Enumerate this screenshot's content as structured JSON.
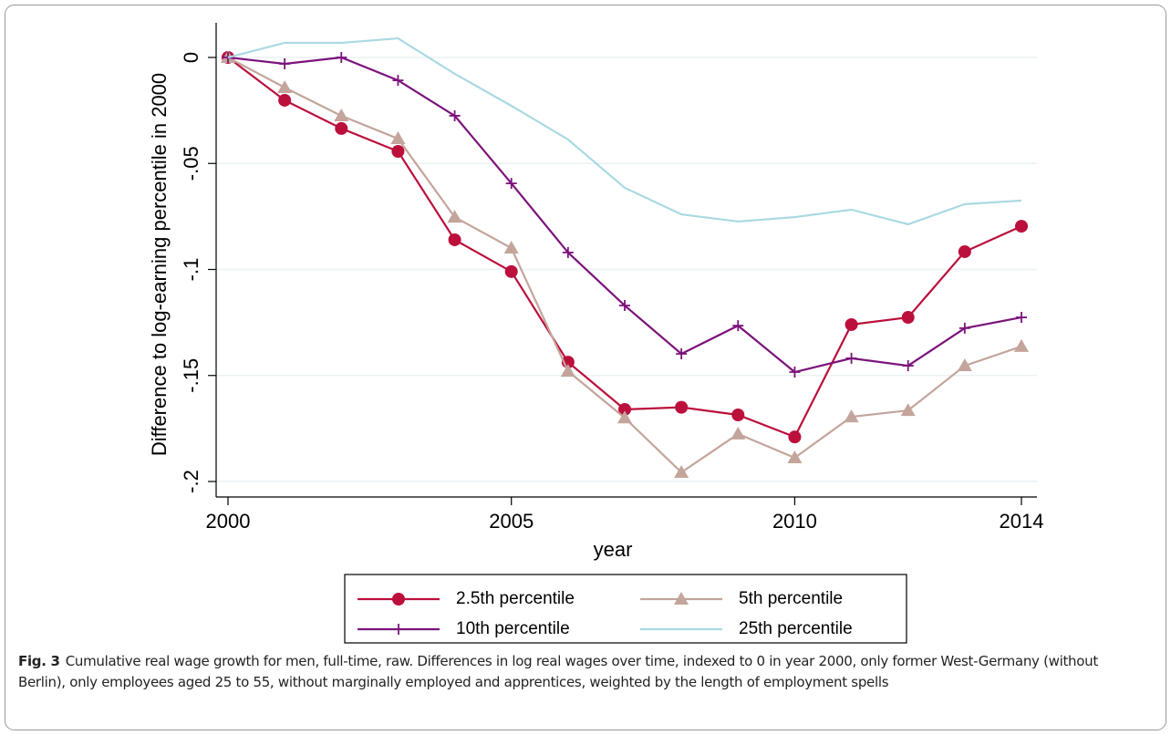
{
  "chart_data": {
    "type": "line",
    "x_label": "year",
    "y_label": "Difference to log-earning percentile in 2000",
    "x": [
      2000,
      2001,
      2002,
      2003,
      2004,
      2005,
      2006,
      2007,
      2008,
      2009,
      2010,
      2011,
      2012,
      2013,
      2014
    ],
    "xlim": [
      2000,
      2014
    ],
    "xticks": [
      2000,
      2005,
      2010,
      2014
    ],
    "ylim": [
      -0.2,
      0
    ],
    "yticks": [
      0,
      {
        "value": -0.05,
        "label": "-.05"
      },
      {
        "value": -0.1,
        "label": "-.1"
      },
      {
        "value": -0.15,
        "label": "-.15"
      },
      {
        "value": -0.2,
        "label": "-.2"
      }
    ],
    "grid": true,
    "series": [
      {
        "name": "2.5th percentile",
        "color": "#bb0f3c",
        "marker": "circle",
        "values": [
          0,
          -0.0202,
          -0.0335,
          -0.0443,
          -0.086,
          -0.101,
          -0.1437,
          -0.166,
          -0.165,
          -0.1686,
          -0.179,
          -0.126,
          -0.1226,
          -0.0916,
          -0.0796
        ]
      },
      {
        "name": "5th percentile",
        "color": "#c3a59b",
        "marker": "triangle",
        "values": [
          0,
          -0.0142,
          -0.0275,
          -0.0383,
          -0.0753,
          -0.0899,
          -0.148,
          -0.17,
          -0.1957,
          -0.1776,
          -0.1888,
          -0.1695,
          -0.1665,
          -0.1454,
          -0.1363
        ]
      },
      {
        "name": "10th percentile",
        "color": "#7b127b",
        "marker": "plus",
        "values": [
          0,
          -0.003,
          0,
          -0.0108,
          -0.0275,
          -0.0594,
          -0.092,
          -0.117,
          -0.1398,
          -0.1265,
          -0.1484,
          -0.1419,
          -0.1454,
          -0.1277,
          -0.1226
        ]
      },
      {
        "name": "25th percentile",
        "color": "#a9d9e2",
        "marker": "none",
        "values": [
          0,
          0.0069,
          0.0069,
          0.009,
          -0.0077,
          -0.0228,
          -0.0387,
          -0.0615,
          -0.074,
          -0.0774,
          -0.0753,
          -0.0718,
          -0.0787,
          -0.0692,
          -0.0675
        ]
      }
    ],
    "caption_label": "Fig. 3",
    "caption": "Cumulative real wage growth for men, full-time, raw. Differences in log real wages over time, indexed to 0 in year 2000, only former West-Germany (without Berlin), only employees aged 25 to 55, without marginally employed and apprentices, weighted by the length of employment spells"
  }
}
